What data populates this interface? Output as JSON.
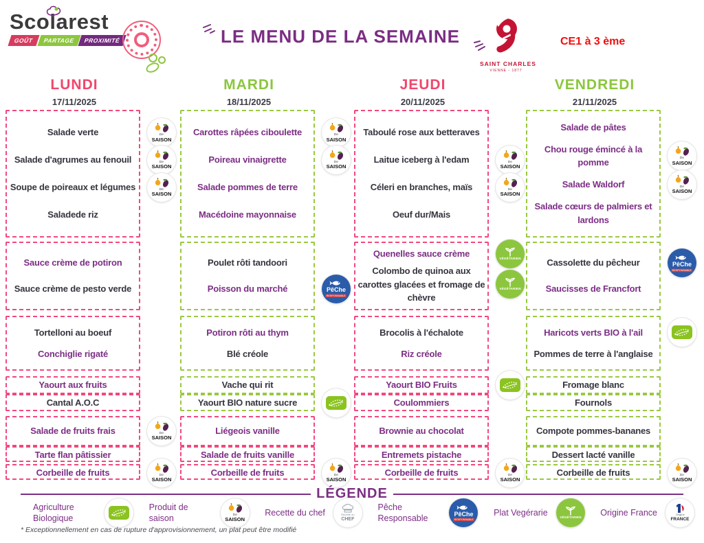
{
  "header": {
    "brand": {
      "name": "Scolarest",
      "bands": [
        "GOÛT",
        "PARTAGE",
        "PROXIMITÉ"
      ]
    },
    "title": "LE MENU DE LA SEMAINE",
    "school": {
      "name": "SAINT CHARLES",
      "subtitle": "VIENNE - 1877"
    },
    "class_level": "CE1 à 3 ème"
  },
  "colors": {
    "pink": "#f2487c",
    "green": "#8cc63e",
    "purple": "#7c2e85",
    "dark": "#35353f",
    "red": "#f20d0d",
    "school_red": "#c41434",
    "peche_blue": "#2a5caa"
  },
  "badge_labels": {
    "saison_top": "De",
    "saison": "SAISON",
    "peche": "PêChe",
    "peche_sub": "RESPONSABLE",
    "vegetarien": "VÉGÉTARIEN",
    "chef_top": "Recette du",
    "chef": "CHEF",
    "france_top": "Origine",
    "france": "FRANCE"
  },
  "days": [
    {
      "name": "LUNDI",
      "date": "17/11/2025",
      "color": "pink",
      "boxes": [
        {
          "border": "pink",
          "items": [
            {
              "text": "Salade verte",
              "color": "dark",
              "badges": [
                "saison"
              ]
            },
            {
              "text": "Salade d'agrumes au fenouil",
              "color": "dark",
              "badges": [
                "saison"
              ]
            },
            {
              "text": "Soupe de poireaux  et légumes",
              "color": "dark",
              "badges": [
                "saison"
              ]
            },
            {
              "text": "Saladede riz",
              "color": "dark"
            }
          ]
        },
        {
          "border": "pink",
          "items": [
            {
              "text": "Sauce crème de potiron",
              "color": "purple"
            },
            {
              "text": "Sauce crème de pesto verde",
              "color": "dark"
            }
          ]
        },
        {
          "border": "pink",
          "items": [
            {
              "text": "Tortelloni au boeuf",
              "color": "dark"
            },
            {
              "text": "Conchiglie rigaté",
              "color": "purple"
            }
          ]
        },
        {
          "border": "pink",
          "items": [
            {
              "text": "Yaourt aux fruits",
              "color": "purple"
            }
          ]
        },
        {
          "border": "pink",
          "items": [
            {
              "text": "Cantal A.O.C",
              "color": "dark"
            }
          ]
        },
        {
          "border": "pink",
          "items": [
            {
              "text": "Salade de fruits frais",
              "color": "purple",
              "badges": [
                "saison"
              ]
            }
          ]
        },
        {
          "border": "pink",
          "items": [
            {
              "text": "Tarte flan pâtissier",
              "color": "purple"
            }
          ]
        },
        {
          "border": "pink",
          "items": [
            {
              "text": "Corbeille de fruits",
              "color": "purple",
              "badges": [
                "saison"
              ]
            }
          ]
        }
      ]
    },
    {
      "name": "MARDI",
      "date": "18/11/2025",
      "color": "green",
      "boxes": [
        {
          "border": "green",
          "items": [
            {
              "text": "Carottes râpées ciboulette",
              "color": "purple",
              "badges": [
                "saison"
              ]
            },
            {
              "text": "Poireau vinaigrette",
              "color": "purple",
              "badges": [
                "saison"
              ]
            },
            {
              "text": "Salade pommes de terre",
              "color": "purple"
            },
            {
              "text": "Macédoine mayonnaise",
              "color": "purple"
            }
          ]
        },
        {
          "border": "green",
          "items": [
            {
              "text": "Poulet rôti tandoori",
              "color": "dark"
            },
            {
              "text": "Poisson du marché",
              "color": "purple",
              "badges": [
                "peche"
              ]
            }
          ]
        },
        {
          "border": "green",
          "items": [
            {
              "text": "Potiron rôti au thym",
              "color": "purple"
            },
            {
              "text": "Blé créole",
              "color": "dark"
            }
          ]
        },
        {
          "border": "green",
          "items": [
            {
              "text": "Vache qui rit",
              "color": "dark"
            }
          ]
        },
        {
          "border": "green",
          "items": [
            {
              "text": "Yaourt BIO nature sucre",
              "color": "dark",
              "badges": [
                "bio"
              ]
            }
          ]
        },
        {
          "border": "pink",
          "items": [
            {
              "text": "Liégeois vanille",
              "color": "purple"
            }
          ]
        },
        {
          "border": "pink",
          "items": [
            {
              "text": "Salade de fruits vanille",
              "color": "purple"
            }
          ]
        },
        {
          "border": "pink",
          "items": [
            {
              "text": "Corbeille de fruits",
              "color": "purple",
              "badges": [
                "saison"
              ]
            }
          ]
        }
      ]
    },
    {
      "name": "JEUDI",
      "date": "20/11/2025",
      "color": "pink",
      "boxes": [
        {
          "border": "pink",
          "items": [
            {
              "text": "Taboulé rose aux betteraves",
              "color": "dark"
            },
            {
              "text": "Laitue iceberg à l'edam",
              "color": "dark",
              "badges": [
                "saison"
              ]
            },
            {
              "text": "Céleri en branches, maïs",
              "color": "dark",
              "badges": [
                "saison"
              ]
            },
            {
              "text": "Oeuf dur/Mais",
              "color": "dark"
            }
          ]
        },
        {
          "border": "pink",
          "items": [
            {
              "text": "Quenelles sauce crème",
              "color": "purple",
              "badges": [
                "vegetarien"
              ]
            },
            {
              "text": "Colombo de quinoa aux carottes glacées et fromage de chèvre",
              "color": "dark",
              "badges": [
                "vegetarien"
              ]
            }
          ]
        },
        {
          "border": "pink",
          "items": [
            {
              "text": "Brocolis à l'échalote",
              "color": "dark"
            },
            {
              "text": "Riz créole",
              "color": "purple"
            }
          ]
        },
        {
          "border": "pink",
          "items": [
            {
              "text": "Yaourt BIO Fruits",
              "color": "purple",
              "badges": [
                "bio"
              ]
            }
          ]
        },
        {
          "border": "pink",
          "items": [
            {
              "text": "Coulommiers",
              "color": "purple"
            }
          ]
        },
        {
          "border": "pink",
          "items": [
            {
              "text": "Brownie au chocolat",
              "color": "purple"
            }
          ]
        },
        {
          "border": "pink",
          "items": [
            {
              "text": "Entremets pistache",
              "color": "purple"
            }
          ]
        },
        {
          "border": "pink",
          "items": [
            {
              "text": "Corbeille de fruits",
              "color": "purple",
              "badges": [
                "saison"
              ]
            }
          ]
        }
      ]
    },
    {
      "name": "VENDREDI",
      "date": "21/11/2025",
      "color": "green",
      "boxes": [
        {
          "border": "green",
          "items": [
            {
              "text": "Salade de pâtes",
              "color": "purple"
            },
            {
              "text": "Chou rouge émincé à la pomme",
              "color": "purple",
              "badges": [
                "saison"
              ]
            },
            {
              "text": "Salade Waldorf",
              "color": "purple",
              "badges": [
                "saison"
              ]
            },
            {
              "text": "Salade cœurs de palmiers et lardons",
              "color": "purple"
            }
          ]
        },
        {
          "border": "green",
          "items": [
            {
              "text": "Cassolette du pêcheur",
              "color": "dark",
              "badges": [
                "peche"
              ]
            },
            {
              "text": "Saucisses de Francfort",
              "color": "purple"
            }
          ]
        },
        {
          "border": "green",
          "items": [
            {
              "text": "Haricots verts BIO à l'ail",
              "color": "purple",
              "badges": [
                "bio"
              ]
            },
            {
              "text": "Pommes de terre à l'anglaise",
              "color": "dark"
            }
          ]
        },
        {
          "border": "green",
          "items": [
            {
              "text": "Fromage blanc",
              "color": "dark"
            }
          ]
        },
        {
          "border": "green",
          "items": [
            {
              "text": "Fournols",
              "color": "dark"
            }
          ]
        },
        {
          "border": "green",
          "items": [
            {
              "text": "Compote pommes-bananes",
              "color": "dark"
            }
          ]
        },
        {
          "border": "green",
          "items": [
            {
              "text": "Dessert lacté  vanille",
              "color": "dark"
            }
          ]
        },
        {
          "border": "green",
          "items": [
            {
              "text": "Corbeille de fruits",
              "color": "dark",
              "badges": [
                "saison"
              ]
            }
          ]
        }
      ]
    }
  ],
  "legend": {
    "title": "LÉGENDE",
    "items": [
      {
        "label": "Agriculture Biologique",
        "icon": "bio"
      },
      {
        "label": "Produit de saison",
        "icon": "saison"
      },
      {
        "label": "Recette du chef",
        "icon": "chef"
      },
      {
        "label": "Pêche Responsable",
        "icon": "peche"
      },
      {
        "label": "Plat Vegérarie",
        "icon": "vegetarien"
      },
      {
        "label": "Origine France",
        "icon": "france"
      }
    ],
    "footnote": "* Exceptionnellement en cas de rupture d'approvisionnement, un plat peut être modifié"
  }
}
